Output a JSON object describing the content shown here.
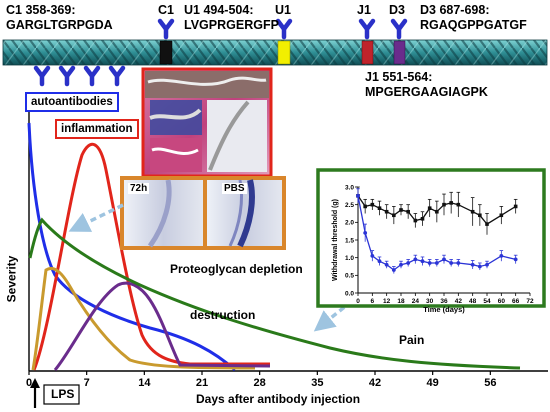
{
  "epitopes": {
    "c1_range": "C1 358-369:",
    "c1_seq": "GARGLTGRPGDA",
    "u1_range": "U1 494-504:",
    "u1_seq": "LVGPRGERGFP",
    "d3_range": "D3 687-698:",
    "d3_seq": "RGAQGPPGATGF",
    "j1_range": "J1 551-564:",
    "j1_seq": "MPGERGAAGIAGPK"
  },
  "helix_markers": [
    {
      "label": "C1",
      "color": "#111111"
    },
    {
      "label": "U1",
      "color": "#f2ef00"
    },
    {
      "label": "J1",
      "color": "#c0232b"
    },
    {
      "label": "D3",
      "color": "#6a2c8c"
    }
  ],
  "boxes": {
    "autoantibodies": "autoantibodies",
    "inflammation": "inflammation"
  },
  "histology": {
    "label_72h": "72h",
    "label_pbs": "PBS",
    "caption": "Proteoglycan depletion"
  },
  "phases": {
    "destruction": "destruction",
    "pain": "Pain"
  },
  "lps_label": "LPS",
  "colors": {
    "autoantibodies": "#1f2ee8",
    "inflammation": "#e1251b",
    "destruction": "#6a2c8c",
    "pain": "#2a7a1a",
    "proteoglycan": "#c99a2e",
    "inset_border": "#2d7a1f",
    "histology_border": "#d9862b",
    "arrow": "#9ec4e0"
  },
  "main_chart": {
    "ylabel": "Severity",
    "xlabel": "Days after antibody injection",
    "xticks": [
      0,
      7,
      14,
      21,
      28,
      35,
      42,
      49,
      56
    ]
  },
  "chart_data": {
    "type": "line",
    "title": "",
    "xlabel": "Time (days)",
    "ylabel": "Withdrawal threshold (g)",
    "xlim": [
      0,
      72
    ],
    "ylim": [
      0,
      3.0
    ],
    "xticks": [
      0,
      6,
      12,
      18,
      24,
      30,
      36,
      42,
      48,
      54,
      60,
      66,
      72
    ],
    "yticks": [
      "0.0",
      "0.5",
      "1.0",
      "1.5",
      "2.0",
      "2.5",
      "3.0"
    ],
    "series": [
      {
        "color": "#111111",
        "x": [
          0,
          3,
          6,
          9,
          12,
          15,
          18,
          21,
          24,
          27,
          30,
          33,
          36,
          39,
          42,
          48,
          51,
          54,
          60,
          66
        ],
        "y": [
          2.75,
          2.45,
          2.5,
          2.4,
          2.3,
          2.2,
          2.35,
          2.3,
          2.05,
          2.1,
          2.4,
          2.3,
          2.5,
          2.55,
          2.5,
          2.3,
          2.2,
          1.95,
          2.2,
          2.45
        ],
        "err": [
          0.25,
          0.2,
          0.15,
          0.2,
          0.2,
          0.25,
          0.15,
          0.2,
          0.2,
          0.2,
          0.25,
          0.3,
          0.3,
          0.3,
          0.35,
          0.4,
          0.3,
          0.3,
          0.25,
          0.2
        ]
      },
      {
        "color": "#2b34d6",
        "x": [
          0,
          3,
          6,
          9,
          12,
          15,
          18,
          21,
          24,
          27,
          30,
          33,
          36,
          39,
          42,
          48,
          51,
          54,
          60,
          66
        ],
        "y": [
          2.75,
          1.7,
          1.05,
          0.9,
          0.8,
          0.65,
          0.8,
          0.85,
          0.95,
          0.9,
          0.85,
          0.85,
          0.95,
          0.85,
          0.85,
          0.8,
          0.75,
          0.8,
          1.05,
          0.95
        ],
        "err": [
          0.2,
          0.25,
          0.15,
          0.12,
          0.1,
          0.1,
          0.1,
          0.1,
          0.12,
          0.12,
          0.1,
          0.1,
          0.12,
          0.1,
          0.1,
          0.12,
          0.1,
          0.1,
          0.15,
          0.12
        ]
      }
    ]
  }
}
